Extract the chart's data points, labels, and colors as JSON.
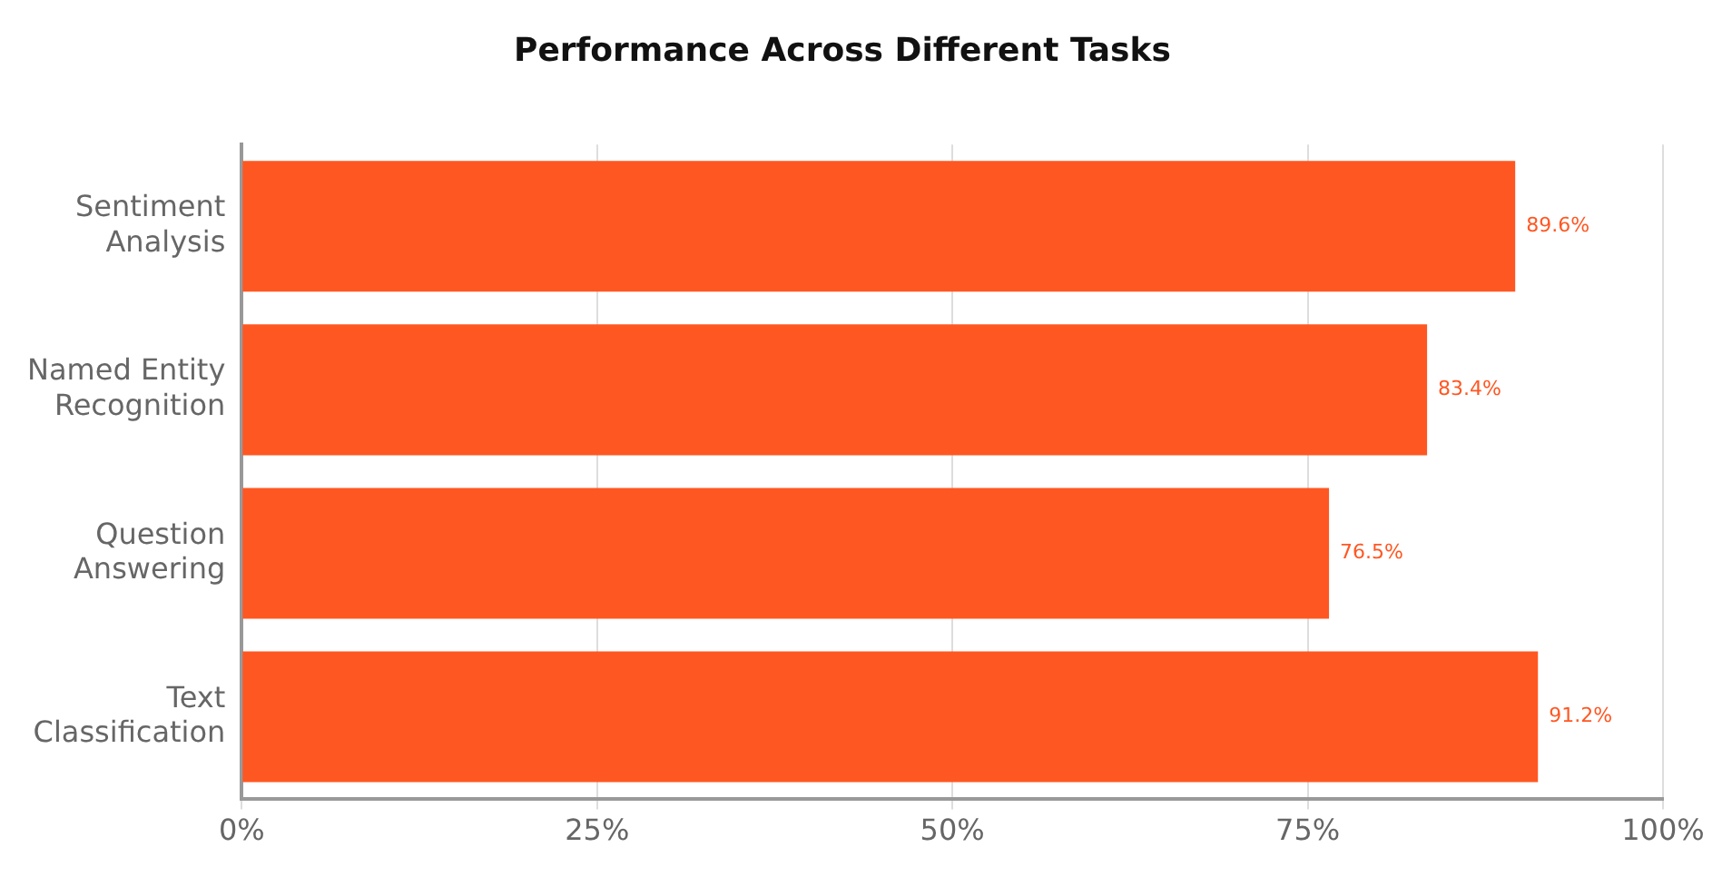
{
  "chart_data": {
    "type": "bar",
    "orientation": "horizontal",
    "title": "Performance Across Different Tasks",
    "categories": [
      "Sentiment Analysis",
      "Named Entity Recognition",
      "Question Answering",
      "Text Classification"
    ],
    "values": [
      89.6,
      83.4,
      76.5,
      91.2
    ],
    "value_labels": [
      "89.6%",
      "83.4%",
      "76.5%",
      "91.2%"
    ],
    "color": "#ff5722",
    "xlim": [
      0,
      100
    ],
    "xticks": [
      {
        "value": 0,
        "label": "0%"
      },
      {
        "value": 25,
        "label": "25%"
      },
      {
        "value": 50,
        "label": "50%"
      },
      {
        "value": 75,
        "label": "75%"
      },
      {
        "value": 100,
        "label": "100%"
      }
    ],
    "grid": "x",
    "legend": false
  }
}
